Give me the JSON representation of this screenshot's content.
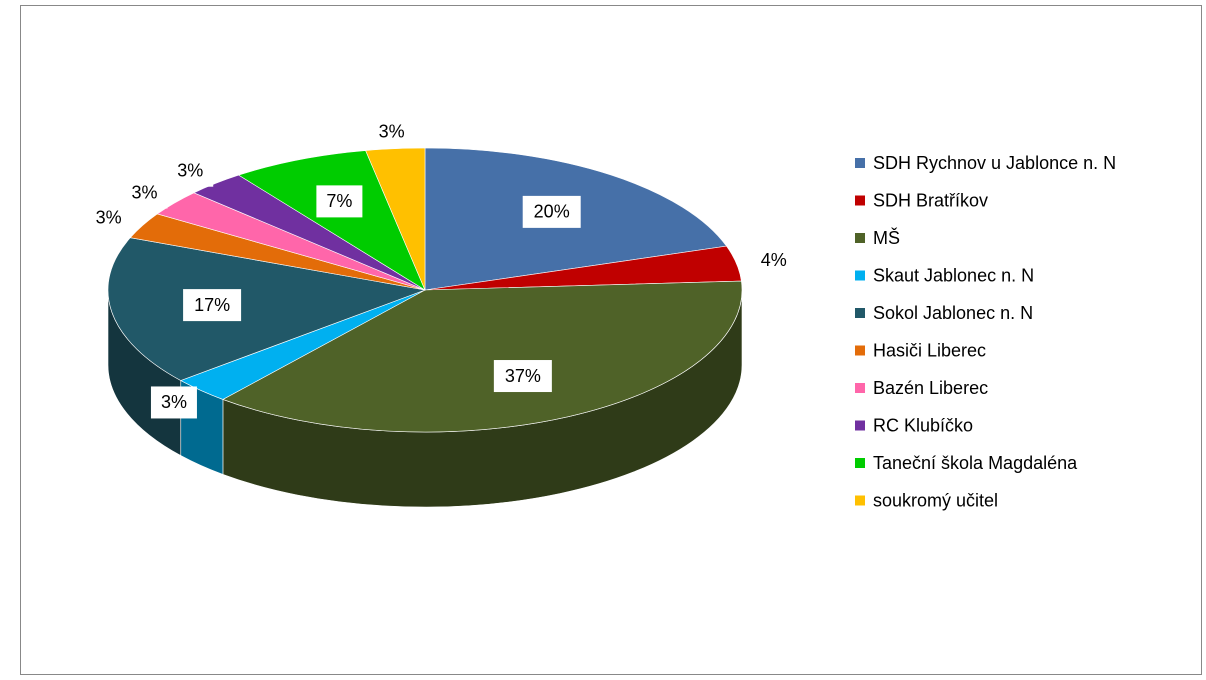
{
  "chart_data": {
    "type": "pie",
    "categories": [
      "SDH Rychnov u Jablonce n. N",
      "SDH Bratříkov",
      "MŠ",
      "Skaut Jablonec n. N",
      "Sokol Jablonec n. N",
      "Hasiči Liberec",
      "Bazén Liberec",
      "RC Klubíčko",
      "Taneční škola Magdaléna",
      "soukromý učitel"
    ],
    "values": [
      20,
      4,
      37,
      3,
      17,
      3,
      3,
      3,
      7,
      3
    ],
    "value_labels": [
      "20%",
      "4%",
      "37%",
      "3%",
      "17%",
      "3%",
      "3%",
      "3%",
      "7%",
      "3%"
    ],
    "colors": [
      "#4670a8",
      "#c00000",
      "#4f6228",
      "#00b0f0",
      "#215868",
      "#e36c09",
      "#ff66aa",
      "#7030a0",
      "#00cc00",
      "#ffc000"
    ],
    "legend": "right"
  }
}
